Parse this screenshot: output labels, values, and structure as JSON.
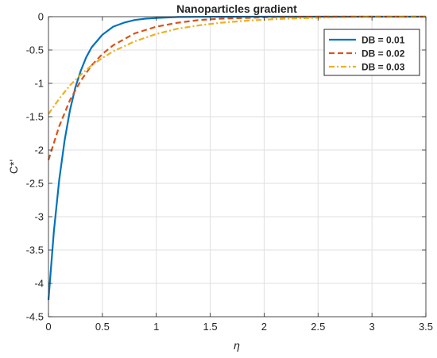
{
  "chart_data": {
    "type": "line",
    "title": "Nanoparticles gradient",
    "xlabel": "η",
    "ylabel": "C*'",
    "xlim": [
      0,
      3.5
    ],
    "ylim": [
      -4.5,
      0
    ],
    "xticks": [
      "0",
      "0.5",
      "1",
      "1.5",
      "2",
      "2.5",
      "3",
      "3.5"
    ],
    "yticks": [
      "0",
      "-0.5",
      "-1",
      "-1.5",
      "-2",
      "-2.5",
      "-3",
      "-3.5",
      "-4",
      "-4.5"
    ],
    "grid": true,
    "legend_position": "top-right",
    "series": [
      {
        "name": "DB = 0.01",
        "color": "#0072BD",
        "style": "solid",
        "x": [
          0,
          0.05,
          0.1,
          0.15,
          0.2,
          0.25,
          0.3,
          0.35,
          0.4,
          0.5,
          0.6,
          0.7,
          0.8,
          0.9,
          1.0,
          1.2,
          1.4,
          1.6,
          2.0,
          2.5,
          3.0,
          3.5
        ],
        "y": [
          -4.25,
          -3.22,
          -2.44,
          -1.85,
          -1.4,
          -1.06,
          -0.81,
          -0.61,
          -0.46,
          -0.27,
          -0.15,
          -0.09,
          -0.05,
          -0.03,
          -0.02,
          -0.005,
          -0.002,
          -0.001,
          0,
          0,
          0,
          0
        ]
      },
      {
        "name": "DB = 0.02",
        "color": "#D95319",
        "style": "dashed",
        "x": [
          0,
          0.1,
          0.2,
          0.3,
          0.4,
          0.5,
          0.6,
          0.8,
          1.0,
          1.2,
          1.4,
          1.6,
          1.8,
          2.0,
          2.2,
          2.5,
          3.0,
          3.5
        ],
        "y": [
          -2.15,
          -1.64,
          -1.25,
          -0.96,
          -0.73,
          -0.56,
          -0.43,
          -0.25,
          -0.15,
          -0.09,
          -0.05,
          -0.03,
          -0.02,
          -0.01,
          -0.005,
          0,
          0,
          0
        ]
      },
      {
        "name": "DB = 0.03",
        "color": "#EDB120",
        "style": "dashdot",
        "x": [
          0,
          0.1,
          0.2,
          0.3,
          0.4,
          0.5,
          0.6,
          0.8,
          1.0,
          1.2,
          1.4,
          1.6,
          1.8,
          2.0,
          2.2,
          2.5,
          3.0,
          3.5
        ],
        "y": [
          -1.46,
          -1.23,
          -1.03,
          -0.87,
          -0.73,
          -0.62,
          -0.52,
          -0.37,
          -0.26,
          -0.18,
          -0.13,
          -0.09,
          -0.065,
          -0.045,
          -0.03,
          -0.015,
          0,
          0
        ]
      }
    ]
  }
}
